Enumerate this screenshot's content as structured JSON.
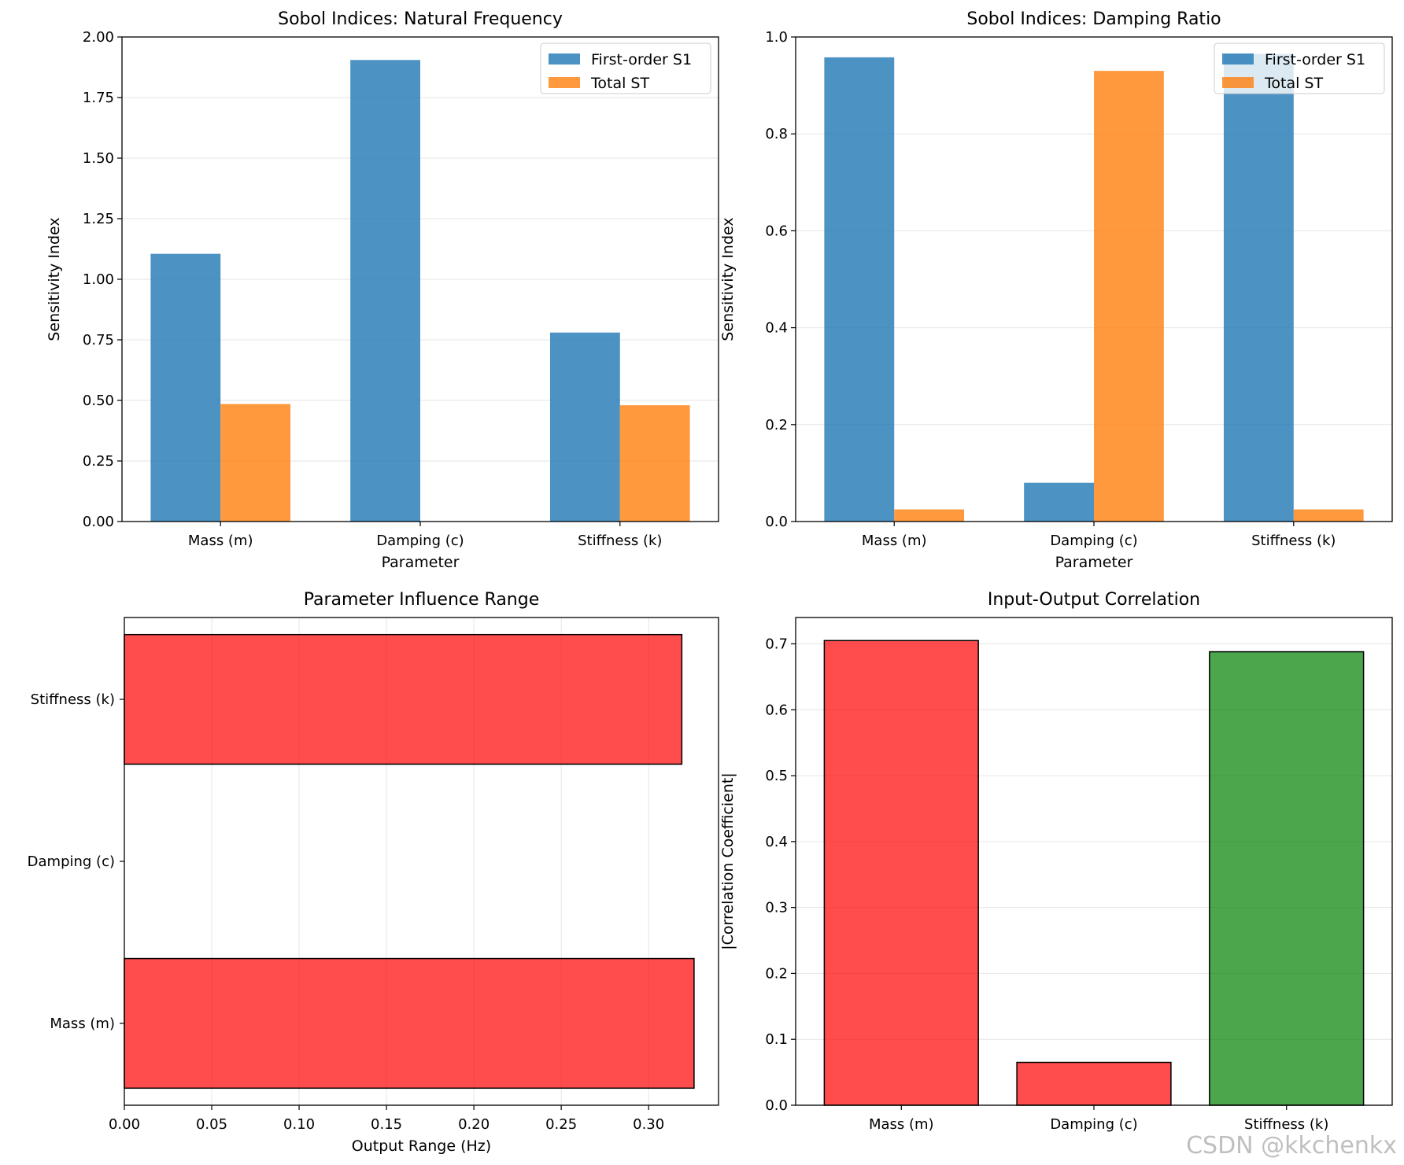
{
  "chart_data": [
    {
      "type": "bar",
      "title": "Sobol Indices: Natural Frequency",
      "xlabel": "Parameter",
      "ylabel": "Sensitivity Index",
      "categories": [
        "Mass (m)",
        "Damping (c)",
        "Stiffness (k)"
      ],
      "series": [
        {
          "name": "First-order S1",
          "values": [
            1.105,
            1.905,
            0.78
          ],
          "color": "#1f77b4"
        },
        {
          "name": "Total ST",
          "values": [
            0.485,
            0.0,
            0.48
          ],
          "color": "#ff7f0e"
        }
      ],
      "ylim": [
        0,
        2.0
      ],
      "yticks": [
        "0.00",
        "0.25",
        "0.50",
        "0.75",
        "1.00",
        "1.25",
        "1.50",
        "1.75",
        "2.00"
      ],
      "grid": "y",
      "legend": "top-right"
    },
    {
      "type": "bar",
      "title": "Sobol Indices: Damping Ratio",
      "xlabel": "Parameter",
      "ylabel": "Sensitivity Index",
      "categories": [
        "Mass (m)",
        "Damping (c)",
        "Stiffness (k)"
      ],
      "series": [
        {
          "name": "First-order S1",
          "values": [
            0.958,
            0.08,
            0.965
          ],
          "color": "#1f77b4"
        },
        {
          "name": "Total ST",
          "values": [
            0.025,
            0.93,
            0.025
          ],
          "color": "#ff7f0e"
        }
      ],
      "ylim": [
        0,
        1.0
      ],
      "yticks": [
        "0.0",
        "0.2",
        "0.4",
        "0.6",
        "0.8",
        "1.0"
      ],
      "grid": "y",
      "legend": "top-right"
    },
    {
      "type": "barh",
      "title": "Parameter Influence Range",
      "xlabel": "Output Range (Hz)",
      "ylabel": "",
      "categories": [
        "Mass (m)",
        "Damping (c)",
        "Stiffness (k)"
      ],
      "values": [
        0.326,
        0.0,
        0.319
      ],
      "color": "#ff0000",
      "xlim": [
        0,
        0.34
      ],
      "xticks": [
        "0.00",
        "0.05",
        "0.10",
        "0.15",
        "0.20",
        "0.25",
        "0.30"
      ],
      "grid": "x"
    },
    {
      "type": "bar",
      "title": "Input-Output Correlation",
      "xlabel": "",
      "ylabel": "|Correlation Coefficient|",
      "categories": [
        "Mass (m)",
        "Damping (c)",
        "Stiffness (k)"
      ],
      "values": [
        0.705,
        0.065,
        0.688
      ],
      "colors": [
        "#ff0000",
        "#ff0000",
        "#008000"
      ],
      "ylim": [
        0,
        0.74
      ],
      "yticks": [
        "0.0",
        "0.1",
        "0.2",
        "0.3",
        "0.4",
        "0.5",
        "0.6",
        "0.7"
      ],
      "grid": "y"
    }
  ],
  "watermark": "CSDN @kkchenkx"
}
